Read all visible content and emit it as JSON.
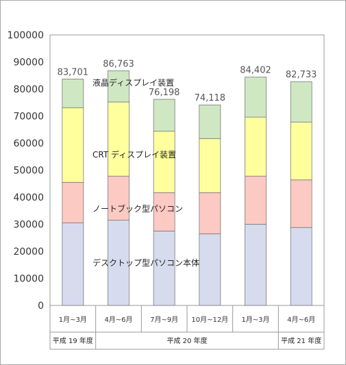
{
  "chart_data": {
    "type": "bar",
    "stacked": true,
    "categories": [
      "1月~3月",
      "4月~6月",
      "7月~9月",
      "10月~12月",
      "1月~3月",
      "4月~6月"
    ],
    "year_groups": [
      {
        "label": "平成 19 年度",
        "count": 1
      },
      {
        "label": "平成 20 年度",
        "count": 4
      },
      {
        "label": "平成 21 年度",
        "count": 1
      }
    ],
    "series": [
      {
        "name": "デスクトップ型パソコン本体",
        "color": "#d6dcee",
        "values": [
          30500,
          31500,
          27500,
          26500,
          30000,
          28800
        ]
      },
      {
        "name": "ノートブック型パソコン",
        "color": "#fdc9c3",
        "values": [
          15000,
          16300,
          14200,
          15200,
          17800,
          17600
        ]
      },
      {
        "name": "CRT ディスプレイ装置",
        "color": "#ffff9e",
        "values": [
          27600,
          27400,
          22700,
          20000,
          21800,
          21400
        ]
      },
      {
        "name": "液晶ディスプレイ装置",
        "color": "#cfe8c3",
        "values": [
          10601,
          11563,
          11798,
          12418,
          14802,
          14933
        ]
      }
    ],
    "totals": [
      "83,701",
      "86,763",
      "76,198",
      "74,118",
      "84,402",
      "82,733"
    ],
    "ylim": [
      0,
      100000
    ],
    "yticks": [
      "0",
      "10000",
      "20000",
      "30000",
      "40000",
      "50000",
      "60000",
      "70000",
      "80000",
      "90000",
      "100000"
    ],
    "grid": false,
    "legend": "inline"
  }
}
